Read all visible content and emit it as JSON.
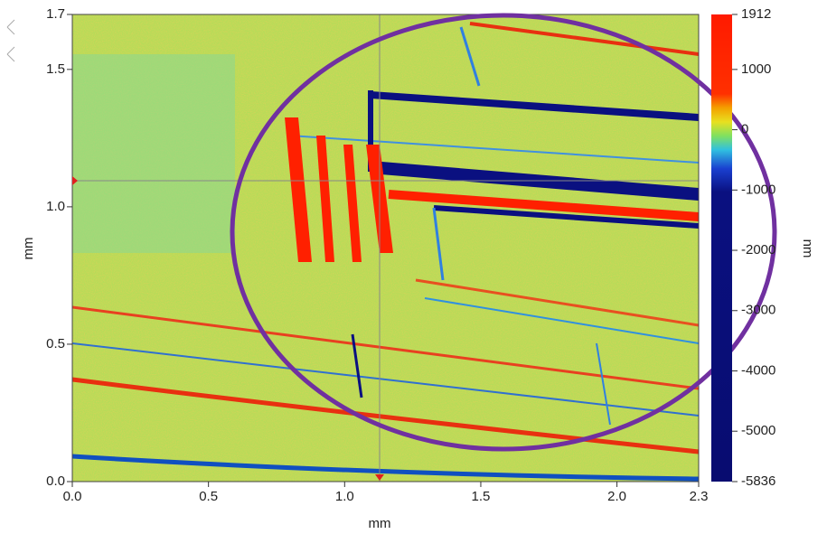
{
  "chart_data": {
    "type": "image",
    "xlabel": "mm",
    "ylabel": "mm",
    "xlim": [
      0,
      2.3
    ],
    "xticks": [
      {
        "value": 0,
        "label": "0.0"
      },
      0.5,
      {
        "value": 1,
        "label": "1.0"
      },
      1.5,
      {
        "value": 2,
        "label": "2.0"
      },
      2.3
    ],
    "ylim": [
      0,
      1.7
    ],
    "yticks": [
      {
        "value": 0,
        "label": "0.0"
      },
      0.5,
      {
        "value": 1,
        "label": "1.0"
      },
      1.5,
      1.7
    ],
    "colorbar": {
      "label": "nm",
      "lim": [
        -5836,
        1912
      ],
      "ticks": [
        1912,
        1000,
        0,
        -1000,
        -2000,
        -3000,
        -4000,
        -5000,
        -5836
      ]
    }
  }
}
